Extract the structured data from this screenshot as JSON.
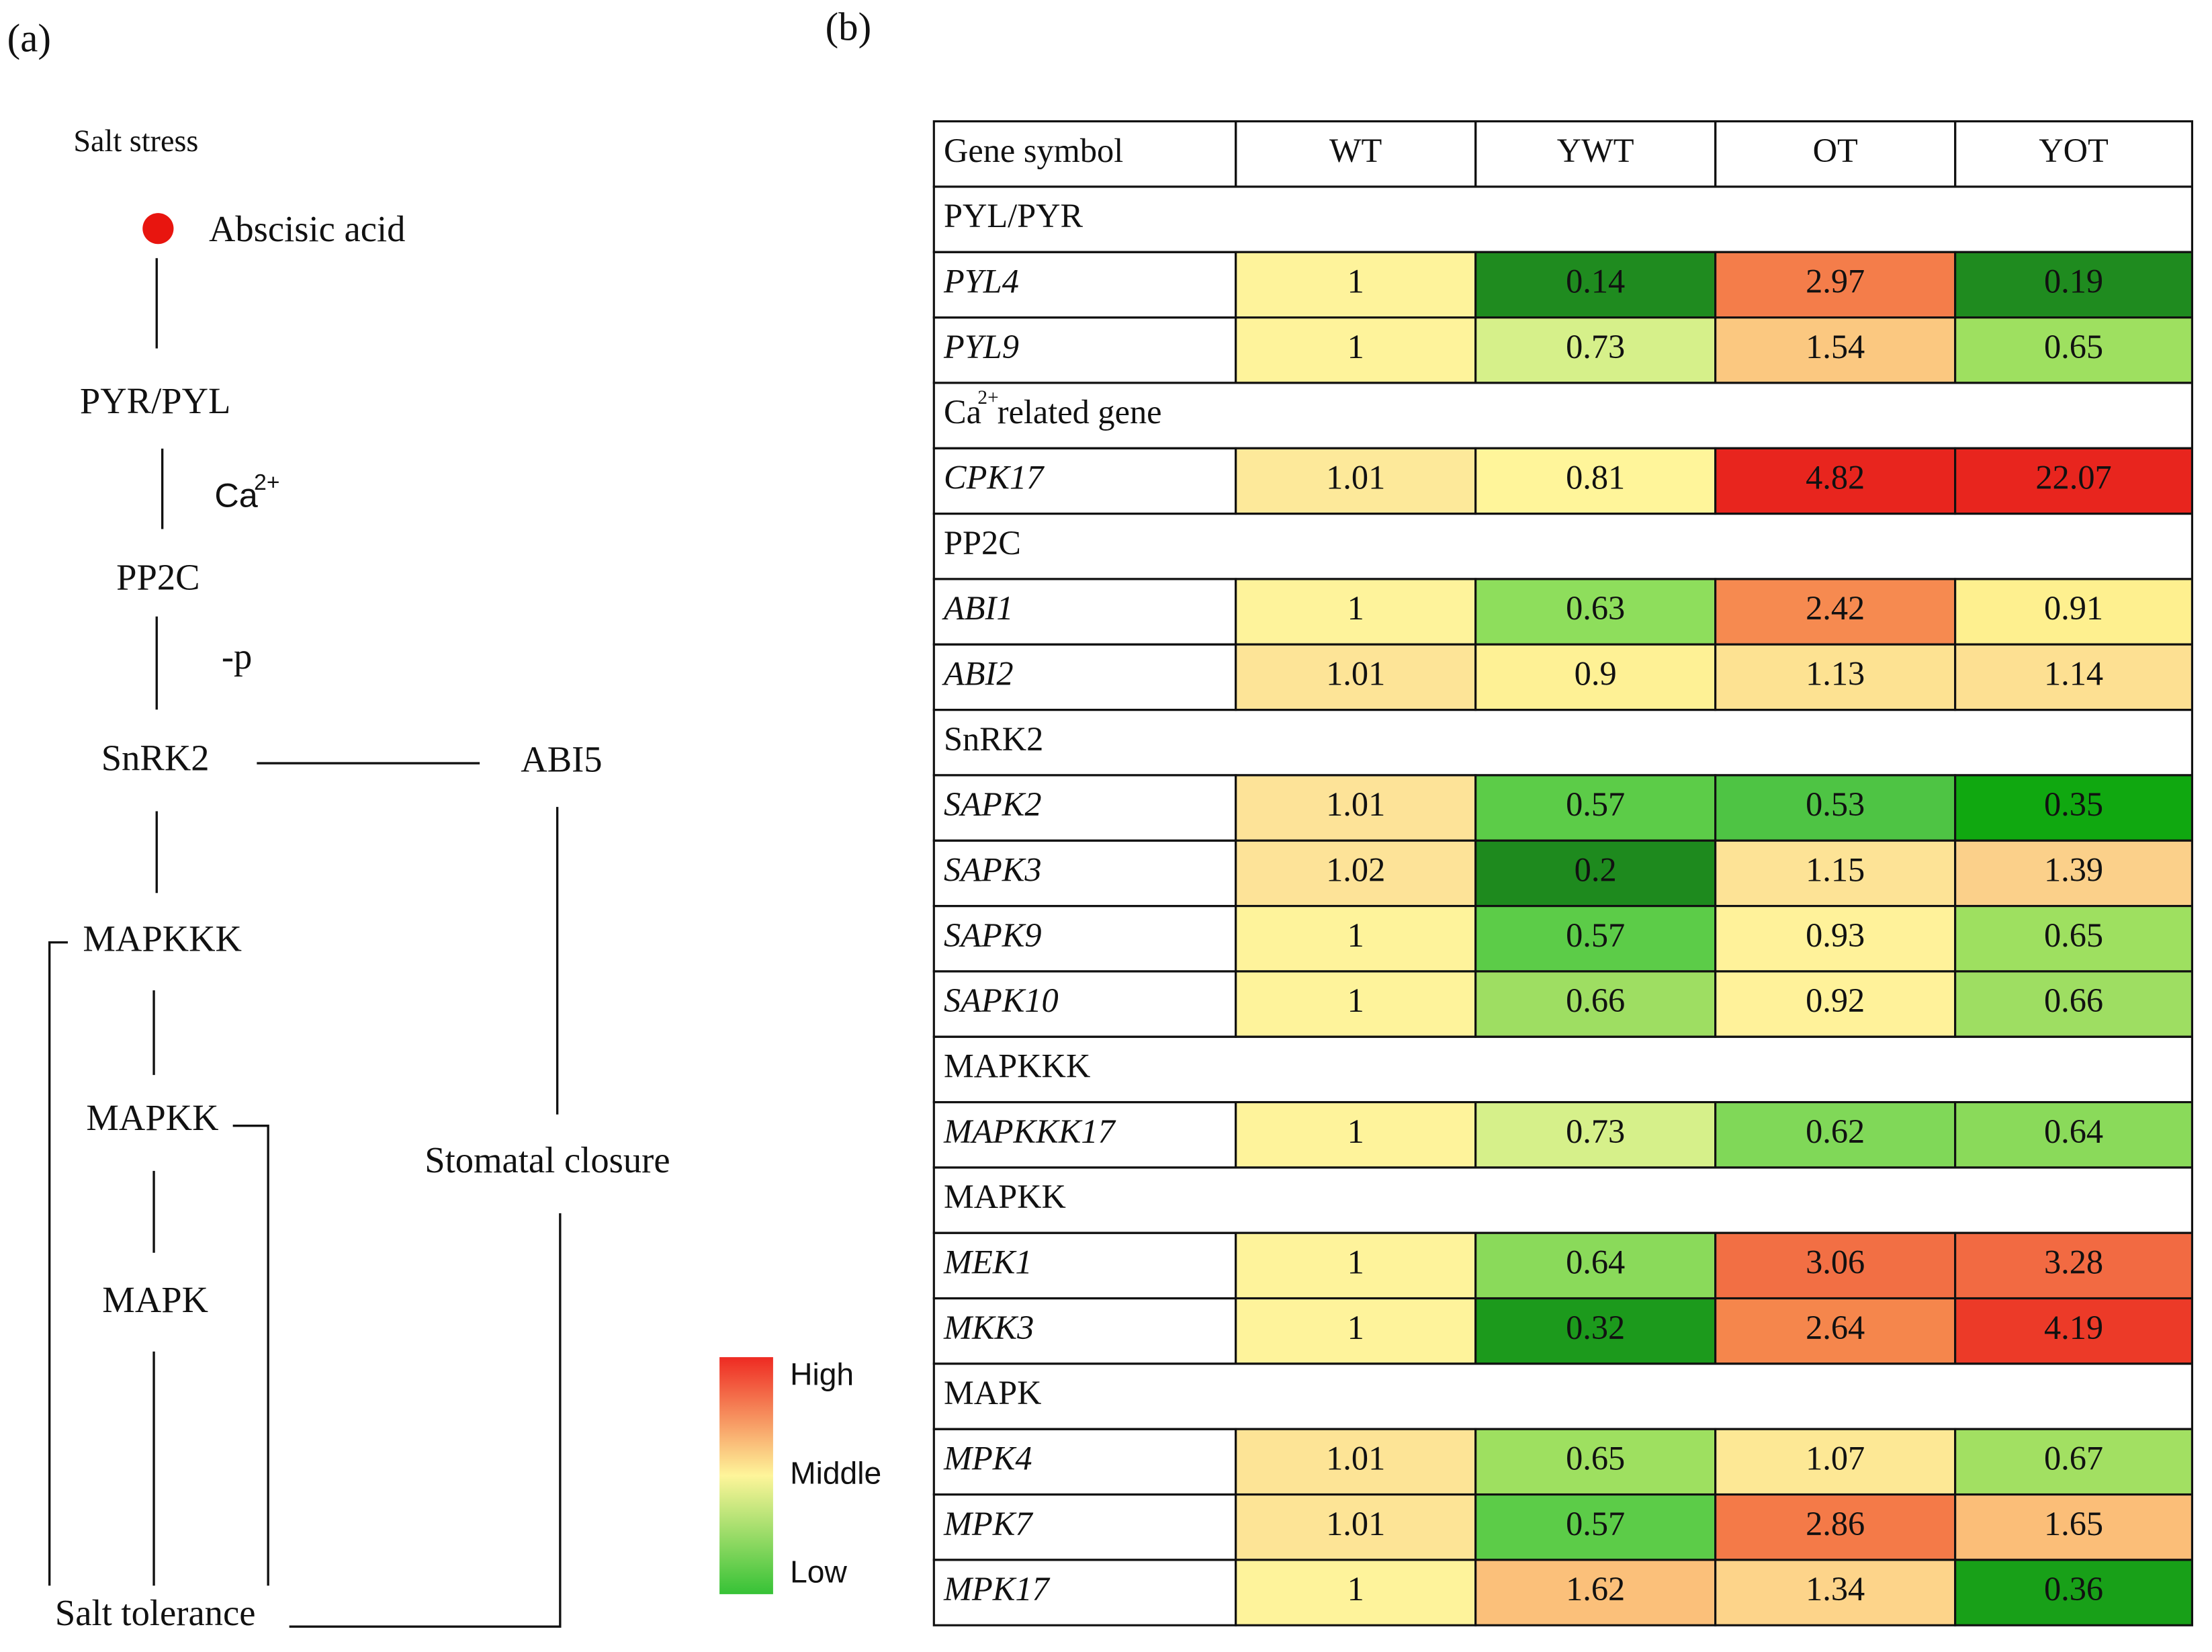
{
  "panel_a": {
    "label": "(a)",
    "nodes": [
      "Salt stress",
      "Abscisic acid",
      "PYR/PYL",
      "PP2C",
      "-p",
      "SnRK2",
      "ABI5",
      "MAPKKK",
      "MAPKK",
      "MAPK",
      "Stomatal closure",
      "Salt tolerance"
    ],
    "ion": {
      "base": "Ca",
      "sup": "2+"
    }
  },
  "panel_b": {
    "label": "(b)",
    "table": {
      "header": [
        "Gene symbol",
        "WT",
        "YWT",
        "OT",
        "YOT"
      ],
      "sections": [
        {
          "name": "PYL/PYR",
          "rows": [
            {
              "gene": "PYL4",
              "cells": [
                {
                  "value": 1,
                  "color": "#fef39b"
                },
                {
                  "value": 0.14,
                  "color": "#1f8b1f"
                },
                {
                  "value": 2.97,
                  "color": "#f47d4a"
                },
                {
                  "value": 0.19,
                  "color": "#1f8b1f"
                }
              ]
            },
            {
              "gene": "PYL9",
              "cells": [
                {
                  "value": 1,
                  "color": "#fef39b"
                },
                {
                  "value": 0.73,
                  "color": "#d6f08a"
                },
                {
                  "value": 1.54,
                  "color": "#fbc880"
                },
                {
                  "value": 0.65,
                  "color": "#9ee060"
                }
              ]
            }
          ]
        },
        {
          "name": {
            "base": "Ca",
            "sup": "2+",
            "text": " related gene"
          },
          "rows": [
            {
              "gene": "CPK17",
              "cells": [
                {
                  "value": 1.01,
                  "color": "#fde99a"
                },
                {
                  "value": 0.81,
                  "color": "#fff59a"
                },
                {
                  "value": 4.82,
                  "color": "#e8251e"
                },
                {
                  "value": 22.07,
                  "color": "#e8251e"
                }
              ]
            }
          ]
        },
        {
          "name": "PP2C",
          "rows": [
            {
              "gene": "ABI1",
              "cells": [
                {
                  "value": 1,
                  "color": "#fef39b"
                },
                {
                  "value": 0.63,
                  "color": "#8ede5c"
                },
                {
                  "value": 2.42,
                  "color": "#f68a50"
                },
                {
                  "value": 0.91,
                  "color": "#fef08f"
                }
              ]
            },
            {
              "gene": "ABI2",
              "cells": [
                {
                  "value": 1.01,
                  "color": "#fde497"
                },
                {
                  "value": 0.9,
                  "color": "#fef195"
                },
                {
                  "value": 1.13,
                  "color": "#fde292"
                },
                {
                  "value": 1.14,
                  "color": "#fde092"
                }
              ]
            }
          ]
        },
        {
          "name": "SnRK2",
          "rows": [
            {
              "gene": "SAPK2",
              "cells": [
                {
                  "value": 1.01,
                  "color": "#fde398"
                },
                {
                  "value": 0.57,
                  "color": "#5ccc48"
                },
                {
                  "value": 0.53,
                  "color": "#4ec444"
                },
                {
                  "value": 0.35,
                  "color": "#10a810"
                }
              ]
            },
            {
              "gene": "SAPK3",
              "cells": [
                {
                  "value": 1.02,
                  "color": "#fde398"
                },
                {
                  "value": 0.2,
                  "color": "#1e8a1e"
                },
                {
                  "value": 1.15,
                  "color": "#fde396"
                },
                {
                  "value": 1.39,
                  "color": "#fbd08a"
                }
              ]
            },
            {
              "gene": "SAPK9",
              "cells": [
                {
                  "value": 1,
                  "color": "#fef39b"
                },
                {
                  "value": 0.57,
                  "color": "#5ccc48"
                },
                {
                  "value": 0.93,
                  "color": "#fff29a"
                },
                {
                  "value": 0.65,
                  "color": "#9ee060"
                }
              ]
            },
            {
              "gene": "SAPK10",
              "cells": [
                {
                  "value": 1,
                  "color": "#fef39b"
                },
                {
                  "value": 0.66,
                  "color": "#9ede62"
                },
                {
                  "value": 0.92,
                  "color": "#fff29a"
                },
                {
                  "value": 0.66,
                  "color": "#9ede62"
                }
              ]
            }
          ]
        },
        {
          "name": "MAPKKK",
          "rows": [
            {
              "gene": "MAPKKK17",
              "cells": [
                {
                  "value": 1,
                  "color": "#fef39b"
                },
                {
                  "value": 0.73,
                  "color": "#d6f08a"
                },
                {
                  "value": 0.62,
                  "color": "#80d858"
                },
                {
                  "value": 0.64,
                  "color": "#8ada5a"
                }
              ]
            }
          ]
        },
        {
          "name": "MAPKK",
          "rows": [
            {
              "gene": "MEK1",
              "cells": [
                {
                  "value": 1,
                  "color": "#fef39b"
                },
                {
                  "value": 0.64,
                  "color": "#8ada5a"
                },
                {
                  "value": 3.06,
                  "color": "#f26f44"
                },
                {
                  "value": 3.28,
                  "color": "#f26a42"
                }
              ]
            },
            {
              "gene": "MKK3",
              "cells": [
                {
                  "value": 1,
                  "color": "#fef39b"
                },
                {
                  "value": 0.32,
                  "color": "#1c9a1c"
                },
                {
                  "value": 2.64,
                  "color": "#f5864c"
                },
                {
                  "value": 4.19,
                  "color": "#ec3a28"
                }
              ]
            }
          ]
        },
        {
          "name": "MAPK",
          "rows": [
            {
              "gene": "MPK4",
              "cells": [
                {
                  "value": 1.01,
                  "color": "#fde496"
                },
                {
                  "value": 0.65,
                  "color": "#9ee060"
                },
                {
                  "value": 1.07,
                  "color": "#fde895"
                },
                {
                  "value": 0.67,
                  "color": "#a2e062"
                }
              ]
            },
            {
              "gene": "MPK7",
              "cells": [
                {
                  "value": 1.01,
                  "color": "#fde496"
                },
                {
                  "value": 0.57,
                  "color": "#5ccc48"
                },
                {
                  "value": 2.86,
                  "color": "#f47a48"
                },
                {
                  "value": 1.65,
                  "color": "#fbbe78"
                }
              ]
            },
            {
              "gene": "MPK17",
              "cells": [
                {
                  "value": 1,
                  "color": "#fef39b"
                },
                {
                  "value": 1.62,
                  "color": "#fbc07a"
                },
                {
                  "value": 1.34,
                  "color": "#fdd48a"
                },
                {
                  "value": 0.36,
                  "color": "#18a018"
                }
              ]
            }
          ]
        }
      ]
    },
    "legend": {
      "labels": [
        "High",
        "Middle",
        "Low"
      ],
      "colors": [
        "#ee2a22",
        "#fef59a",
        "#36c236"
      ]
    }
  }
}
